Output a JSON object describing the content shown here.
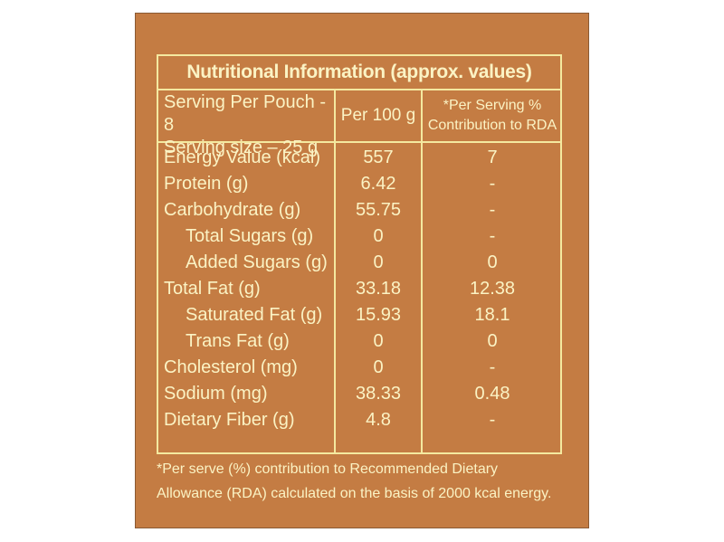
{
  "panel": {
    "title": "Nutritional Information (approx. values)",
    "header": {
      "serving_pouch": "Serving Per Pouch - 8",
      "serving_size": "Serving size – 25 g",
      "per_100g": "Per 100 g",
      "rda_line1": "*Per Serving %",
      "rda_line2": "Contribution to RDA"
    },
    "rows": [
      {
        "name": "Energy Value (kcal)",
        "per100": "557",
        "rda": "7"
      },
      {
        "name": "Protein (g)",
        "per100": "6.42",
        "rda": "-"
      },
      {
        "name": "Carbohydrate (g)",
        "per100": "55.75",
        "rda": "-"
      },
      {
        "name": "Total Sugars (g)",
        "per100": "0",
        "rda": "-"
      },
      {
        "name": "Added Sugars (g)",
        "per100": "0",
        "rda": "0"
      },
      {
        "name": "Total Fat (g)",
        "per100": "33.18",
        "rda": "12.38"
      },
      {
        "name": "Saturated Fat (g)",
        "per100": "15.93",
        "rda": "18.1"
      },
      {
        "name": "Trans Fat (g)",
        "per100": "0",
        "rda": "0"
      },
      {
        "name": "Cholesterol (mg)",
        "per100": "0",
        "rda": "-"
      },
      {
        "name": "Sodium (mg)",
        "per100": "38.33",
        "rda": "0.48"
      },
      {
        "name": "Dietary Fiber (g)",
        "per100": "4.8",
        "rda": "-"
      }
    ],
    "footnote_line1": "*Per serve (%) contribution to Recommended Dietary",
    "footnote_line2": "Allowance (RDA) calculated on the basis of 2000 kcal energy."
  },
  "colors": {
    "background": "#c47c43",
    "text": "#fbf3c4",
    "border": "#f4e9a0"
  }
}
